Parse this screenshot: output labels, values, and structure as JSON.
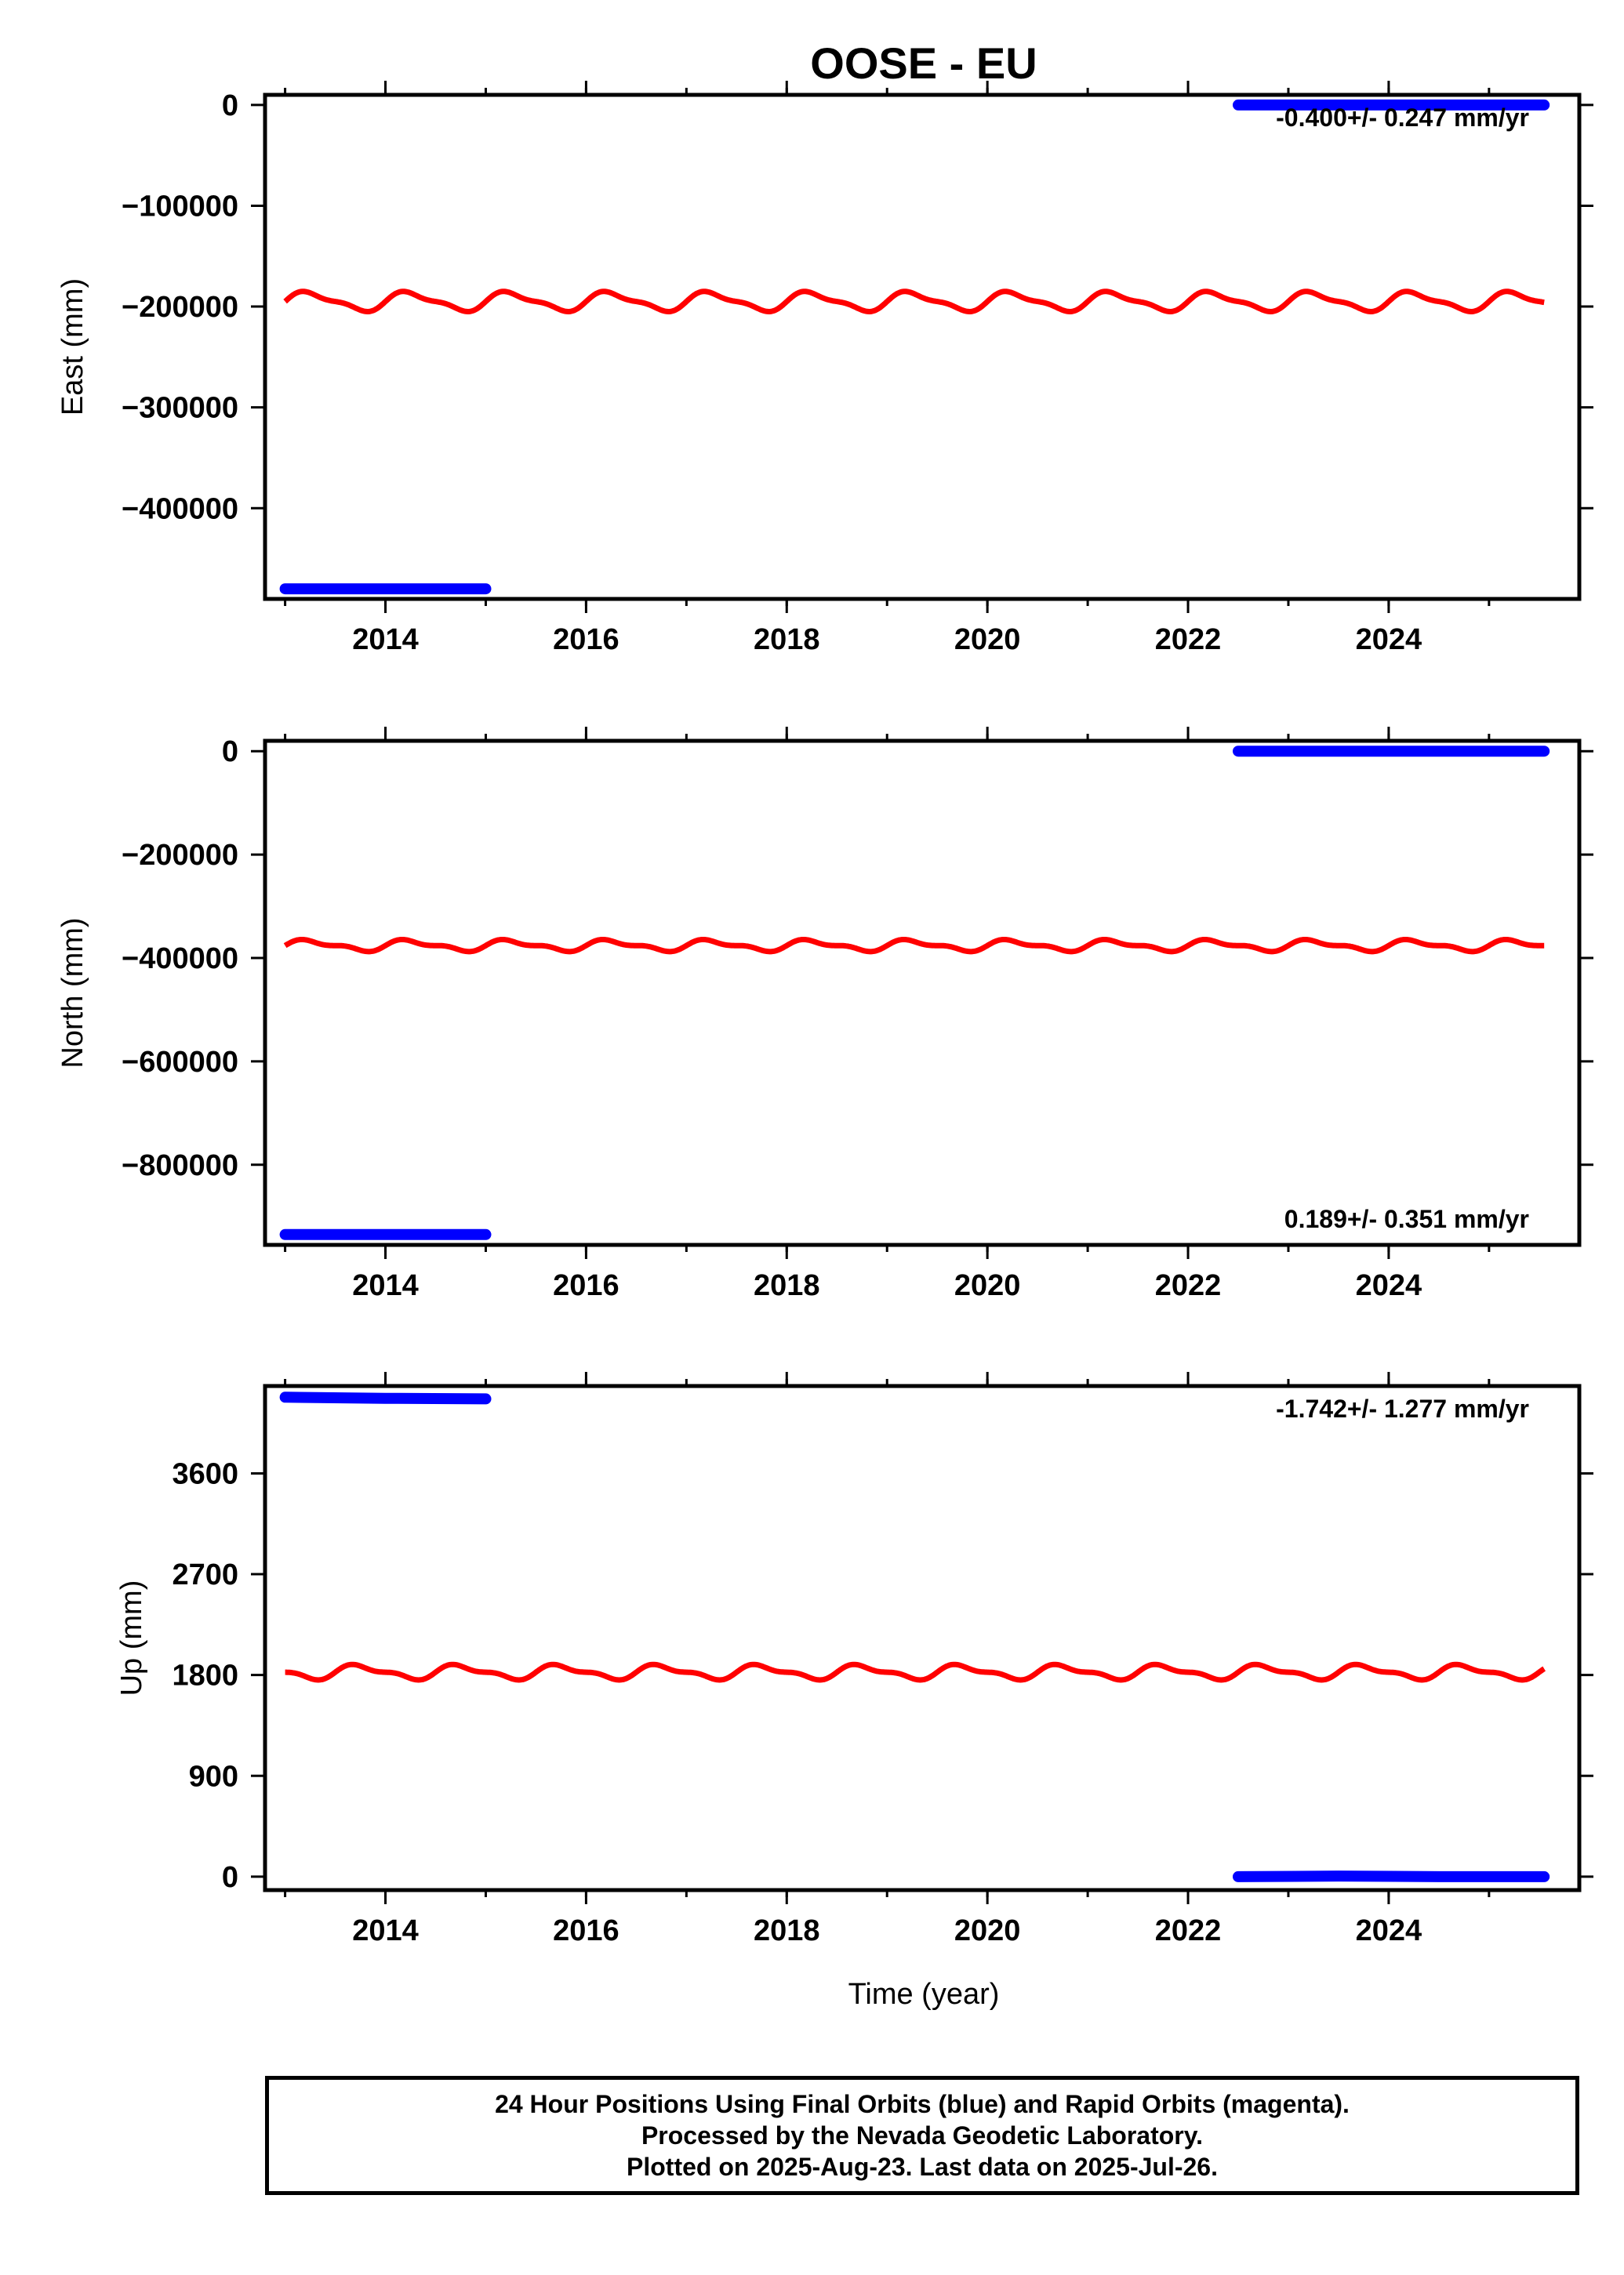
{
  "title": "OOSE - EU",
  "colors": {
    "final_orbits": "#0000ff",
    "model_fit": "#ff0000",
    "frame": "#000000"
  },
  "xlabel": "Time (year)",
  "footnote": [
    "24 Hour Positions Using Final Orbits (blue) and Rapid Orbits (magenta).",
    "Processed by the Nevada Geodetic Laboratory.",
    "Plotted on 2025-Aug-23. Last data on 2025-Jul-26."
  ],
  "chart_data": [
    {
      "type": "scatter",
      "ylabel": "East (mm)",
      "xlim": [
        2012.8,
        2025.9
      ],
      "ylim": [
        -490000,
        10000
      ],
      "xticks": [
        2014,
        2016,
        2018,
        2020,
        2022,
        2024
      ],
      "yticks": [
        0,
        -100000,
        -200000,
        -300000,
        -400000
      ],
      "ytick_labels": [
        "0",
        "−100000",
        "−200000",
        "−300000",
        "−400000"
      ],
      "rate_label": "-0.400+/- 0.247 mm/yr",
      "rate_position": "top-right",
      "series": [
        {
          "points": [
            [
              2013.0,
              -480000
            ],
            [
              2015.0,
              -480000
            ]
          ]
        },
        {
          "points": [
            [
              2022.5,
              0
            ],
            [
              2025.55,
              0
            ]
          ]
        }
      ],
      "model": {
        "x_range": [
          2013.0,
          2025.55
        ],
        "mean": -195000,
        "annual_amplitude": 8500,
        "semiannual_amplitude": 3000
      }
    },
    {
      "type": "scatter",
      "ylabel": "North (mm)",
      "xlim": [
        2012.8,
        2025.9
      ],
      "ylim": [
        -955000,
        20000
      ],
      "xticks": [
        2014,
        2016,
        2018,
        2020,
        2022,
        2024
      ],
      "yticks": [
        0,
        -200000,
        -400000,
        -600000,
        -800000
      ],
      "ytick_labels": [
        "0",
        "−200000",
        "−400000",
        "−600000",
        "−800000"
      ],
      "rate_label": "0.189+/- 0.351 mm/yr",
      "rate_position": "bottom-right",
      "series": [
        {
          "points": [
            [
              2013.0,
              -935000
            ],
            [
              2015.0,
              -935000
            ]
          ]
        },
        {
          "points": [
            [
              2022.5,
              0
            ],
            [
              2025.55,
              0
            ]
          ]
        }
      ],
      "model": {
        "x_range": [
          2013.0,
          2025.55
        ],
        "mean": -376000,
        "annual_amplitude": 9000,
        "semiannual_amplitude": 4500
      }
    },
    {
      "type": "scatter",
      "ylabel": "Up (mm)",
      "xlim": [
        2012.8,
        2025.9
      ],
      "ylim": [
        -120,
        4380
      ],
      "xticks": [
        2014,
        2016,
        2018,
        2020,
        2022,
        2024
      ],
      "yticks": [
        0,
        900,
        1800,
        2700,
        3600
      ],
      "ytick_labels": [
        "0",
        "900",
        "1800",
        "2700",
        "3600"
      ],
      "rate_label": "-1.742+/- 1.277 mm/yr",
      "rate_position": "top-right",
      "series": [
        {
          "points": [
            [
              2013.0,
              4280
            ],
            [
              2014.0,
              4270
            ],
            [
              2015.0,
              4265
            ]
          ]
        },
        {
          "points": [
            [
              2022.5,
              0
            ],
            [
              2023.5,
              5
            ],
            [
              2024.5,
              0
            ],
            [
              2025.55,
              0
            ]
          ]
        }
      ],
      "model": {
        "x_range": [
          2013.0,
          2025.55
        ],
        "mean": 1825,
        "annual_amplitude": -55,
        "semiannual_amplitude": 25
      }
    }
  ]
}
